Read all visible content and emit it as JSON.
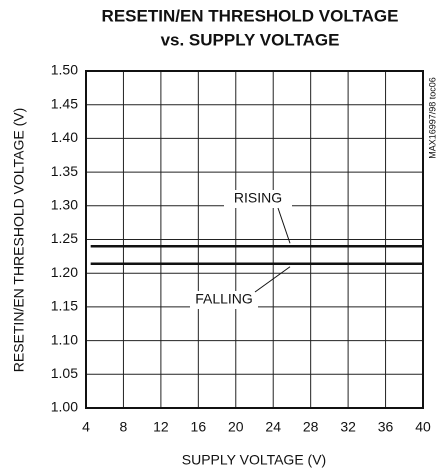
{
  "chart_data": {
    "type": "line",
    "title": [
      "RESETIN/EN THRESHOLD VOLTAGE",
      "vs. SUPPLY VOLTAGE"
    ],
    "x_label": "SUPPLY VOLTAGE (V)",
    "y_label": "RESETIN/EN THRESHOLD VOLTAGE (V)",
    "x": [
      4.5,
      40
    ],
    "series": [
      {
        "name": "RISING",
        "color": "#111111",
        "values": [
          1.24,
          1.24
        ]
      },
      {
        "name": "FALLING",
        "color": "#111111",
        "values": [
          1.214,
          1.214
        ]
      }
    ],
    "xlim": [
      4,
      40
    ],
    "xticks": [
      4,
      8,
      12,
      16,
      20,
      24,
      28,
      32,
      36,
      40
    ],
    "ylim": [
      1.0,
      1.5
    ],
    "yticks": [
      {
        "value": 1.0,
        "label": "1.00"
      },
      1.05,
      {
        "value": 1.1,
        "label": "1.10"
      },
      1.15,
      {
        "value": 1.2,
        "label": "1.20"
      },
      1.25,
      {
        "value": 1.3,
        "label": "1.30"
      },
      1.35,
      {
        "value": 1.4,
        "label": "1.40"
      },
      1.45,
      {
        "value": 1.5,
        "label": "1.50"
      }
    ],
    "grid": true,
    "watermark": "MAX16997/98 toc06"
  }
}
